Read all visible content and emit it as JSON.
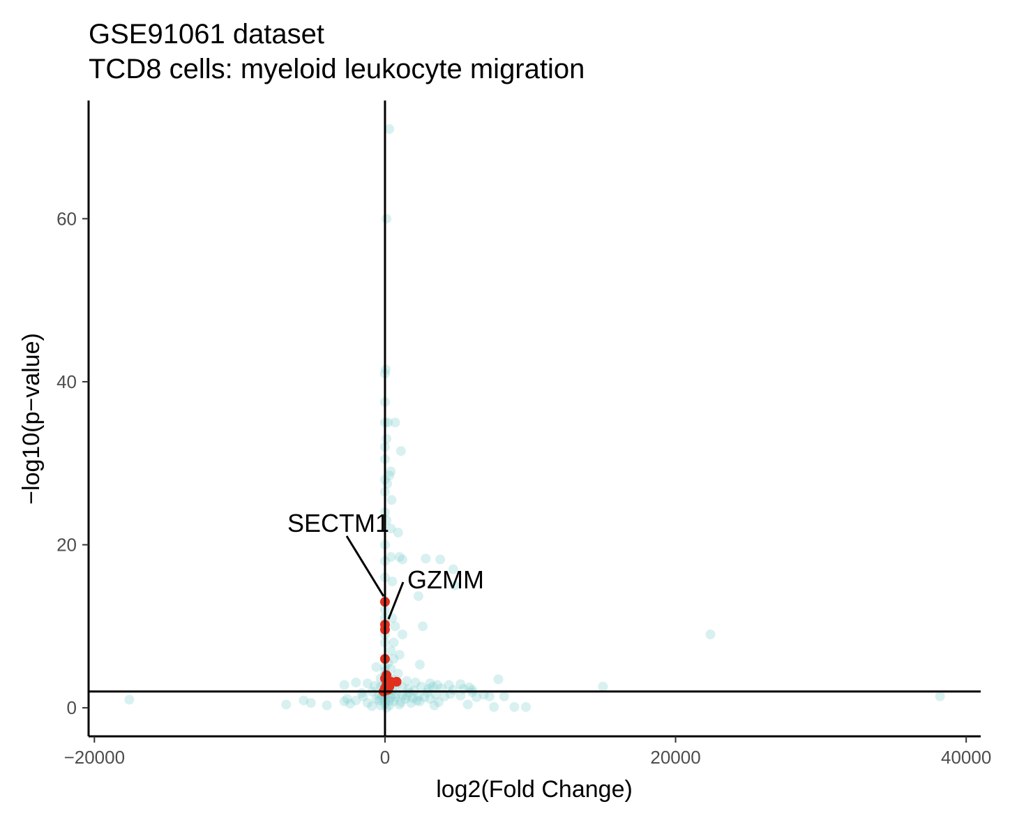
{
  "chart_data": {
    "type": "scatter",
    "title": "GSE91061 dataset",
    "subtitle": "TCD8 cells: myeloid leukocyte migration",
    "xlabel": "log2(Fold Change)",
    "ylabel": "−log10(p−value)",
    "xlim": [
      -20400,
      41000
    ],
    "ylim": [
      -3.5,
      74.5
    ],
    "xticks": [
      {
        "value": -20000,
        "label": "−20000"
      },
      {
        "value": 0,
        "label": "0"
      },
      {
        "value": 20000,
        "label": "20000"
      },
      {
        "value": 40000,
        "label": "40000"
      }
    ],
    "yticks": [
      {
        "value": 0,
        "label": "0"
      },
      {
        "value": 20,
        "label": "20"
      },
      {
        "value": 40,
        "label": "40"
      },
      {
        "value": 60,
        "label": "60"
      }
    ],
    "vline_x": 0,
    "hline_y": 2,
    "grid": false,
    "colors": {
      "background_points": "#7fcdcd",
      "highlight_points": "#e0301e",
      "axis": "#000000"
    },
    "background_points": [
      [
        300,
        71
      ],
      [
        100,
        60
      ],
      [
        50,
        41.5
      ],
      [
        0,
        41
      ],
      [
        0,
        37.5
      ],
      [
        0,
        35
      ],
      [
        700,
        35
      ],
      [
        200,
        35
      ],
      [
        100,
        33
      ],
      [
        0,
        32
      ],
      [
        1100,
        31.5
      ],
      [
        0,
        30.5
      ],
      [
        400,
        29
      ],
      [
        300,
        28.5
      ],
      [
        0,
        28
      ],
      [
        150,
        27.5
      ],
      [
        0,
        26.5
      ],
      [
        450,
        25.5
      ],
      [
        0,
        24
      ],
      [
        100,
        23
      ],
      [
        400,
        22
      ],
      [
        900,
        21.5
      ],
      [
        0,
        20
      ],
      [
        1000,
        18.5
      ],
      [
        2800,
        18.3
      ],
      [
        3800,
        18.2
      ],
      [
        1200,
        18.2
      ],
      [
        400,
        18.5
      ],
      [
        0,
        18
      ],
      [
        4700,
        17
      ],
      [
        0,
        16
      ],
      [
        500,
        15.5
      ],
      [
        4800,
        15
      ],
      [
        2300,
        13.7
      ],
      [
        0,
        13
      ],
      [
        0,
        12
      ],
      [
        0,
        11
      ],
      [
        500,
        11
      ],
      [
        2600,
        10
      ],
      [
        700,
        10
      ],
      [
        0,
        9
      ],
      [
        1200,
        9
      ],
      [
        0,
        8
      ],
      [
        600,
        8
      ],
      [
        400,
        7
      ],
      [
        1000,
        6.5
      ],
      [
        0,
        6
      ],
      [
        600,
        6
      ],
      [
        200,
        5.5
      ],
      [
        2400,
        5.3
      ],
      [
        0,
        5
      ],
      [
        -600,
        5
      ],
      [
        400,
        4.8
      ],
      [
        0,
        4.5
      ],
      [
        900,
        4.2
      ],
      [
        0,
        4
      ],
      [
        200,
        3.8
      ],
      [
        500,
        3.5
      ],
      [
        -300,
        3.6
      ],
      [
        1500,
        3.3
      ],
      [
        2100,
        3.1
      ],
      [
        3100,
        3
      ],
      [
        3600,
        2.8
      ],
      [
        4400,
        2.8
      ],
      [
        5200,
        2.9
      ],
      [
        5800,
        2.5
      ],
      [
        6000,
        2.2
      ],
      [
        7800,
        3.5
      ],
      [
        15000,
        2.6
      ],
      [
        22400,
        9
      ],
      [
        38200,
        1.4
      ],
      [
        -17600,
        1
      ],
      [
        -6800,
        0.4
      ],
      [
        -5600,
        0.9
      ],
      [
        -5100,
        0.6
      ],
      [
        -4000,
        0.3
      ],
      [
        -2800,
        0.8
      ],
      [
        -2600,
        1.1
      ],
      [
        -2400,
        0.5
      ],
      [
        -2000,
        0.9
      ],
      [
        -1500,
        1.4
      ],
      [
        -1200,
        0.6
      ],
      [
        -900,
        0.2
      ],
      [
        -600,
        1.1
      ],
      [
        -300,
        0.3
      ],
      [
        0,
        0.5
      ],
      [
        300,
        0.3
      ],
      [
        600,
        0.8
      ],
      [
        1000,
        0.4
      ],
      [
        1400,
        1.1
      ],
      [
        1800,
        0.6
      ],
      [
        2200,
        0.9
      ],
      [
        2700,
        1.3
      ],
      [
        3400,
        0.3
      ],
      [
        3700,
        0.7
      ],
      [
        4500,
        1.7
      ],
      [
        5200,
        1.5
      ],
      [
        5700,
        0.4
      ],
      [
        6300,
        1.3
      ],
      [
        7200,
        1.4
      ],
      [
        7500,
        0.1
      ],
      [
        8200,
        1.4
      ],
      [
        8900,
        0.1
      ],
      [
        9700,
        0.1
      ],
      [
        -2800,
        2.8
      ],
      [
        -2000,
        3.1
      ],
      [
        -1200,
        3
      ],
      [
        -700,
        2.7
      ],
      [
        -300,
        2.6
      ],
      [
        200,
        2.4
      ],
      [
        500,
        2.2
      ],
      [
        800,
        2.9
      ],
      [
        1200,
        2.5
      ],
      [
        1600,
        2.3
      ],
      [
        2000,
        2.1
      ],
      [
        2500,
        2.6
      ],
      [
        3000,
        2.3
      ],
      [
        3300,
        2.6
      ],
      [
        3900,
        2.4
      ],
      [
        4700,
        2.2
      ],
      [
        5400,
        2.3
      ],
      [
        6000,
        1.9
      ],
      [
        6800,
        1.6
      ],
      [
        -1600,
        1.8
      ],
      [
        -900,
        2
      ],
      [
        -400,
        1.5
      ],
      [
        0,
        1.9
      ],
      [
        400,
        1.3
      ],
      [
        800,
        1.7
      ],
      [
        1200,
        1.5
      ],
      [
        1700,
        1.8
      ],
      [
        2300,
        1.4
      ],
      [
        2900,
        1.9
      ],
      [
        3500,
        1.6
      ],
      [
        4100,
        1.4
      ],
      [
        -400,
        0.9
      ],
      [
        0,
        1.2
      ],
      [
        300,
        0.9
      ],
      [
        700,
        1.3
      ],
      [
        1100,
        0.7
      ],
      [
        1500,
        1.5
      ],
      [
        1900,
        1.2
      ],
      [
        2400,
        0.8
      ],
      [
        3100,
        1.1
      ],
      [
        -100,
        2.8
      ],
      [
        100,
        3.2
      ],
      [
        0,
        2.3
      ],
      [
        0,
        1.6
      ],
      [
        0,
        0.8
      ],
      [
        100,
        0
      ],
      [
        -200,
        1.5
      ],
      [
        200,
        1.7
      ]
    ],
    "highlight_points": [
      [
        0,
        13
      ],
      [
        0,
        10.2
      ],
      [
        0,
        9.6
      ],
      [
        0,
        6
      ],
      [
        100,
        4
      ],
      [
        0,
        3.6
      ],
      [
        400,
        3.2
      ],
      [
        800,
        3.2
      ],
      [
        100,
        2.8
      ],
      [
        0,
        2.4
      ],
      [
        -100,
        2
      ],
      [
        200,
        2.2
      ],
      [
        300,
        2.6
      ]
    ],
    "annotations": [
      {
        "label": "SECTM1",
        "x": 0,
        "y": 13
      },
      {
        "label": "GZMM",
        "x": 100,
        "y": 10.2
      }
    ]
  }
}
